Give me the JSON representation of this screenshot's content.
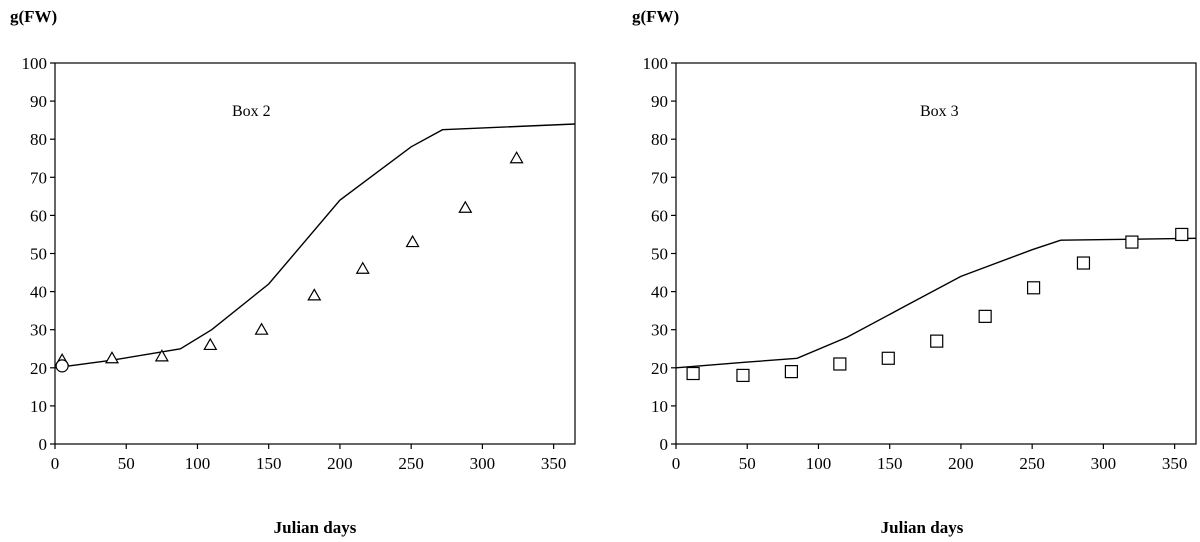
{
  "chart_data": [
    {
      "type": "scatter",
      "ylabel": "g(FW)",
      "xlabel": "Julian days",
      "annotation": "Box 2",
      "xlim": [
        0,
        365
      ],
      "ylim": [
        0,
        100
      ],
      "xticks": [
        0,
        50,
        100,
        150,
        200,
        250,
        300,
        350
      ],
      "yticks": [
        0,
        10,
        20,
        30,
        40,
        50,
        60,
        70,
        80,
        90,
        100
      ],
      "grid": false,
      "series": [
        {
          "kind": "line",
          "color": "#000000",
          "x": [
            0,
            40,
            88,
            110,
            150,
            200,
            250,
            272,
            365
          ],
          "y": [
            20,
            22,
            25,
            30,
            42,
            64,
            78,
            82.5,
            84
          ]
        },
        {
          "kind": "scatter",
          "marker": "triangle",
          "color": "#000000",
          "x": [
            5,
            40,
            75,
            109,
            145,
            182,
            216,
            251,
            288,
            324
          ],
          "y": [
            22,
            22.5,
            23,
            26,
            30,
            39,
            46,
            53,
            62,
            75
          ]
        },
        {
          "kind": "scatter",
          "marker": "circle",
          "color": "#000000",
          "x": [
            5
          ],
          "y": [
            20.5
          ]
        }
      ]
    },
    {
      "type": "scatter",
      "ylabel": "g(FW)",
      "xlabel": "Julian days",
      "annotation": "Box 3",
      "xlim": [
        0,
        365
      ],
      "ylim": [
        0,
        100
      ],
      "xticks": [
        0,
        50,
        100,
        150,
        200,
        250,
        300,
        350
      ],
      "yticks": [
        0,
        10,
        20,
        30,
        40,
        50,
        60,
        70,
        80,
        90,
        100
      ],
      "grid": false,
      "series": [
        {
          "kind": "line",
          "color": "#000000",
          "x": [
            0,
            50,
            85,
            120,
            160,
            200,
            250,
            270,
            365
          ],
          "y": [
            20,
            21.5,
            22.5,
            28,
            36,
            44,
            51,
            53.5,
            54
          ]
        },
        {
          "kind": "scatter",
          "marker": "square",
          "color": "#000000",
          "x": [
            12,
            47,
            81,
            115,
            149,
            183,
            217,
            251,
            286,
            320,
            355
          ],
          "y": [
            18.5,
            18,
            19,
            21,
            22.5,
            27,
            33.5,
            41,
            47.5,
            53,
            55
          ]
        }
      ]
    }
  ]
}
